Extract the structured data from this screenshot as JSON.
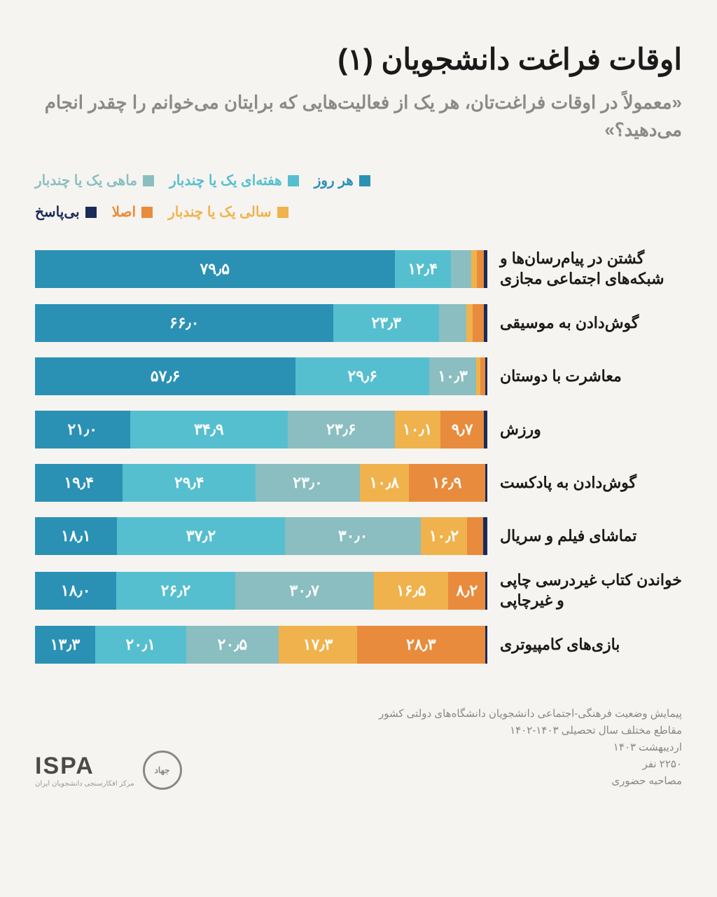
{
  "title": "اوقات فراغت دانشجویان (۱)",
  "subtitle": "«معمولاً در اوقات فراغت‌تان، هر یک از فعالیت‌هایی که برایتان می‌خوانم را چقدر انجام می‌دهید؟»",
  "legend": {
    "row1": [
      {
        "label": "هر روز",
        "color": "#2a91b5"
      },
      {
        "label": "هفته‌ای یک یا چندبار",
        "color": "#56bfcf"
      },
      {
        "label": "ماهی یک یا چندبار",
        "color": "#8abec1"
      }
    ],
    "row2": [
      {
        "label": "سالی یک یا چندبار",
        "color": "#f0b24d"
      },
      {
        "label": "اصلا",
        "color": "#e98b3c"
      },
      {
        "label": "بی‌پاسخ",
        "color": "#1a2b5a"
      }
    ]
  },
  "colors": {
    "daily": "#2a91b5",
    "weekly": "#56bfcf",
    "monthly": "#8abec1",
    "yearly": "#f0b24d",
    "never": "#e98b3c",
    "noanswer": "#1a2b5a"
  },
  "chart": {
    "min_label_width_pct": 8,
    "rows": [
      {
        "label": "گشتن در پیام‌رسان‌ها و شبکه‌های اجتماعی مجازی",
        "segments": [
          {
            "key": "daily",
            "value": 79.5,
            "text": "۷۹٫۵"
          },
          {
            "key": "weekly",
            "value": 12.4,
            "text": "۱۲٫۴"
          },
          {
            "key": "monthly",
            "value": 4.5,
            "text": ""
          },
          {
            "key": "yearly",
            "value": 1.3,
            "text": ""
          },
          {
            "key": "never",
            "value": 1.6,
            "text": ""
          },
          {
            "key": "noanswer",
            "value": 0.7,
            "text": ""
          }
        ]
      },
      {
        "label": "گوش‌دادن به موسیقی",
        "segments": [
          {
            "key": "daily",
            "value": 66.0,
            "text": "۶۶٫۰"
          },
          {
            "key": "weekly",
            "value": 23.3,
            "text": "۲۳٫۳"
          },
          {
            "key": "monthly",
            "value": 6.0,
            "text": ""
          },
          {
            "key": "yearly",
            "value": 1.5,
            "text": ""
          },
          {
            "key": "never",
            "value": 2.5,
            "text": ""
          },
          {
            "key": "noanswer",
            "value": 0.7,
            "text": ""
          }
        ]
      },
      {
        "label": "معاشرت با دوستان",
        "segments": [
          {
            "key": "daily",
            "value": 57.6,
            "text": "۵۷٫۶"
          },
          {
            "key": "weekly",
            "value": 29.6,
            "text": "۲۹٫۶"
          },
          {
            "key": "monthly",
            "value": 10.3,
            "text": "۱۰٫۳"
          },
          {
            "key": "yearly",
            "value": 1.0,
            "text": ""
          },
          {
            "key": "never",
            "value": 1.0,
            "text": ""
          },
          {
            "key": "noanswer",
            "value": 0.5,
            "text": ""
          }
        ]
      },
      {
        "label": "ورزش",
        "segments": [
          {
            "key": "daily",
            "value": 21.0,
            "text": "۲۱٫۰"
          },
          {
            "key": "weekly",
            "value": 34.9,
            "text": "۳۴٫۹"
          },
          {
            "key": "monthly",
            "value": 23.6,
            "text": "۲۳٫۶"
          },
          {
            "key": "yearly",
            "value": 10.1,
            "text": "۱۰٫۱"
          },
          {
            "key": "never",
            "value": 9.7,
            "text": "۹٫۷"
          },
          {
            "key": "noanswer",
            "value": 0.7,
            "text": ""
          }
        ]
      },
      {
        "label": "گوش‌دادن به پادکست",
        "segments": [
          {
            "key": "daily",
            "value": 19.4,
            "text": "۱۹٫۴"
          },
          {
            "key": "weekly",
            "value": 29.4,
            "text": "۲۹٫۴"
          },
          {
            "key": "monthly",
            "value": 23.0,
            "text": "۲۳٫۰"
          },
          {
            "key": "yearly",
            "value": 10.8,
            "text": "۱۰٫۸"
          },
          {
            "key": "never",
            "value": 16.9,
            "text": "۱۶٫۹"
          },
          {
            "key": "noanswer",
            "value": 0.5,
            "text": ""
          }
        ]
      },
      {
        "label": "تماشای فیلم و سریال",
        "segments": [
          {
            "key": "daily",
            "value": 18.1,
            "text": "۱۸٫۱"
          },
          {
            "key": "weekly",
            "value": 37.2,
            "text": "۳۷٫۲"
          },
          {
            "key": "monthly",
            "value": 30.0,
            "text": "۳۰٫۰"
          },
          {
            "key": "yearly",
            "value": 10.2,
            "text": "۱۰٫۲"
          },
          {
            "key": "never",
            "value": 3.5,
            "text": ""
          },
          {
            "key": "noanswer",
            "value": 1.0,
            "text": ""
          }
        ]
      },
      {
        "label": "خواندن کتاب غیردرسی چاپی و غیرچاپی",
        "segments": [
          {
            "key": "daily",
            "value": 18.0,
            "text": "۱۸٫۰"
          },
          {
            "key": "weekly",
            "value": 26.2,
            "text": "۲۶٫۲"
          },
          {
            "key": "monthly",
            "value": 30.7,
            "text": "۳۰٫۷"
          },
          {
            "key": "yearly",
            "value": 16.5,
            "text": "۱۶٫۵"
          },
          {
            "key": "never",
            "value": 8.2,
            "text": "۸٫۲"
          },
          {
            "key": "noanswer",
            "value": 0.4,
            "text": ""
          }
        ]
      },
      {
        "label": "بازی‌های کامپیوتری",
        "segments": [
          {
            "key": "daily",
            "value": 13.3,
            "text": "۱۳٫۳"
          },
          {
            "key": "weekly",
            "value": 20.1,
            "text": "۲۰٫۱"
          },
          {
            "key": "monthly",
            "value": 20.5,
            "text": "۲۰٫۵"
          },
          {
            "key": "yearly",
            "value": 17.3,
            "text": "۱۷٫۳"
          },
          {
            "key": "never",
            "value": 28.3,
            "text": "۲۸٫۳"
          },
          {
            "key": "noanswer",
            "value": 0.5,
            "text": ""
          }
        ]
      }
    ]
  },
  "footer": {
    "lines": [
      "پیمایش وضعیت فرهنگی-اجتماعی دانشجویان دانشگاه‌های دولتی کشور",
      "مقاطع مختلف سال تحصیلی ۱۴۰۳-۱۴۰۲",
      "اردیبهشت ۱۴۰۳",
      "۲۲۵۰ نفر",
      "مصاحبه حضوری"
    ],
    "logo": "ISPA",
    "logo_sub": "مرکز افکارسنجی دانشجویان ایران",
    "badge": "جهاد"
  }
}
